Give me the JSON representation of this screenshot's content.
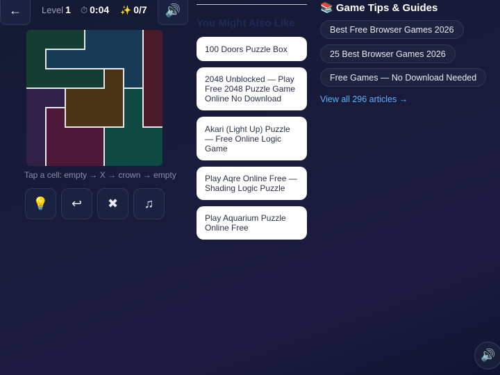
{
  "topbar": {
    "back_icon": "←",
    "level_label": "Level",
    "level_value": "1",
    "time_icon": "⏱",
    "time_value": "0:04",
    "stars_icon": "✨",
    "stars_value": "0/7",
    "sound_icon": "🔊"
  },
  "board": {
    "rows": 7,
    "cols": 7,
    "region_colors": [
      "#153e33",
      "#173a55",
      "#4b1a29",
      "#2f2048",
      "#4a3416",
      "#0f4941",
      "#4d1737"
    ]
  },
  "hint": "Tap a cell: empty → X → crown → empty",
  "tools": [
    {
      "name": "hint",
      "icon": "💡"
    },
    {
      "name": "undo",
      "icon": "↩"
    },
    {
      "name": "clear",
      "icon": "✖"
    },
    {
      "name": "music",
      "icon": "♫"
    }
  ],
  "you_might_also_like": {
    "title": "You Might Also Like",
    "cards": [
      "100 Doors Puzzle Box",
      "2048 Unblocked — Play Free 2048 Puzzle Game Online No Download",
      "Akari (Light Up) Puzzle — Free Online Logic Game",
      "Play Aqre Online Free — Shading Logic Puzzle",
      "Play Aquarium Puzzle Online Free"
    ]
  },
  "tips": {
    "title_icon": "📚",
    "title": "Game Tips & Guides",
    "articles": [
      "Best Free Browser Games 2026",
      "25 Best Browser Games 2026",
      "Free Games — No Download Needed"
    ],
    "view_all": "View all 296 articles →"
  },
  "fab_sound_icon": "🔊"
}
